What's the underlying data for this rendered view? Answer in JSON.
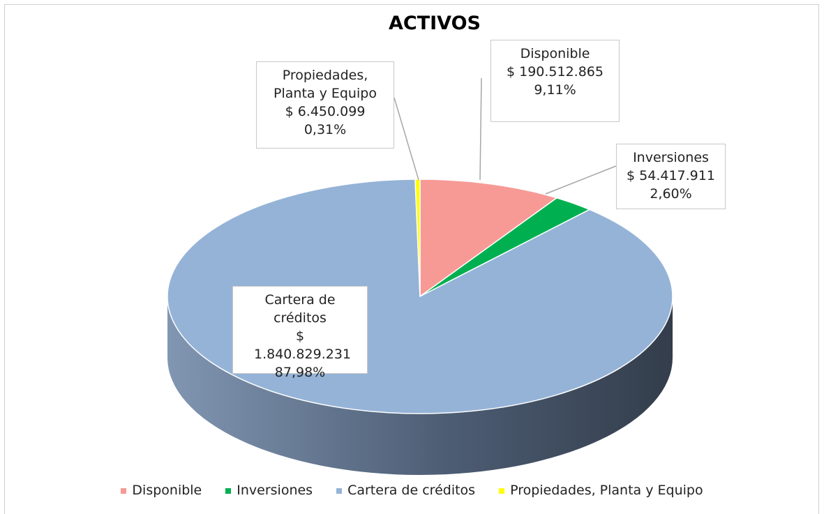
{
  "chart_data": {
    "type": "pie3d",
    "title": "ACTIVOS",
    "categories": [
      "Disponible",
      "Inversiones",
      "Cartera de créditos",
      "Propiedades, Planta y Equipo"
    ],
    "values": [
      190512865,
      54417911,
      1840829231,
      6450099
    ],
    "value_labels": [
      "$ 190.512.865",
      "$ 54.417.911",
      "$ 1.840.829.231",
      "$ 6.450.099"
    ],
    "percentages": [
      9.11,
      2.6,
      87.98,
      0.31
    ],
    "percentage_labels": [
      "9,11%",
      "2,60%",
      "87,98%",
      "0,31%"
    ],
    "colors": [
      "#f79a96",
      "#00b050",
      "#95b3d7",
      "#ffff00"
    ],
    "legend": "bottom"
  }
}
